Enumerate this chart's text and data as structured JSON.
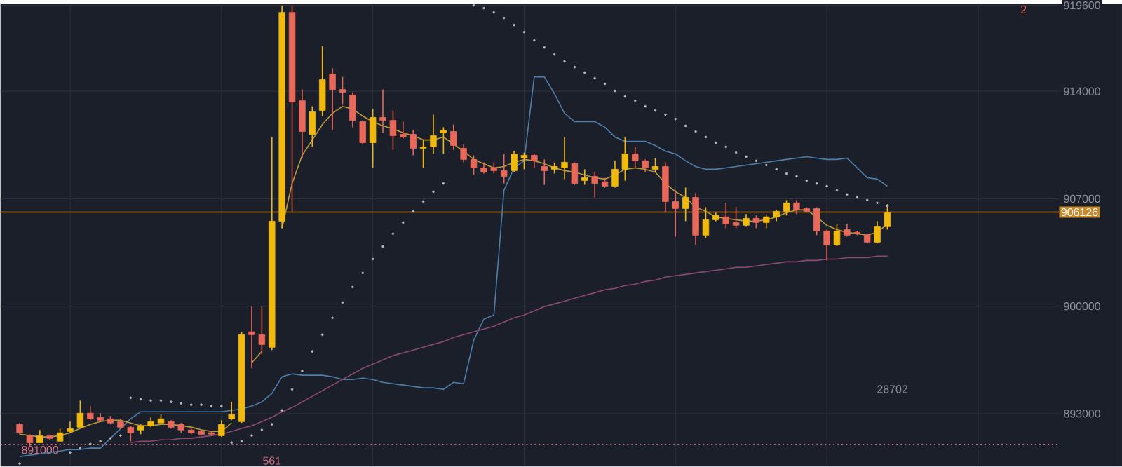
{
  "chart_data": {
    "type": "candlestick",
    "categories": [
      null,
      null,
      null,
      null,
      null,
      null,
      null,
      null,
      null,
      null,
      null,
      null,
      null,
      null,
      null,
      null,
      null,
      null,
      null,
      null,
      null,
      null,
      null,
      null,
      null,
      null,
      null,
      null,
      null,
      null,
      null,
      null,
      null,
      null,
      null,
      null,
      null,
      null,
      null,
      null,
      null,
      null,
      null,
      null,
      null,
      null,
      null,
      null,
      null,
      null,
      null,
      null,
      null,
      null,
      null,
      null,
      null,
      null,
      null,
      null,
      null,
      null,
      null,
      null,
      null,
      null,
      null,
      null,
      null,
      null,
      null,
      null,
      null,
      null,
      null,
      null,
      null,
      null,
      null,
      null,
      null,
      null,
      null,
      null,
      null,
      null,
      null
    ],
    "ohlc": [
      [
        892300,
        892390,
        891650,
        891750
      ],
      [
        891560,
        891650,
        890840,
        891100
      ],
      [
        891100,
        891930,
        891100,
        891560
      ],
      [
        891560,
        891650,
        891290,
        891380
      ],
      [
        891200,
        892020,
        891200,
        891750
      ],
      [
        891840,
        892480,
        891750,
        892020
      ],
      [
        892110,
        893850,
        892110,
        893030
      ],
      [
        893030,
        893490,
        892570,
        892660
      ],
      [
        892750,
        893030,
        892480,
        892570
      ],
      [
        892660,
        892850,
        892300,
        892390
      ],
      [
        892480,
        892660,
        892020,
        892110
      ],
      [
        892110,
        892200,
        891200,
        891750
      ],
      [
        891930,
        892300,
        891660,
        892200
      ],
      [
        892200,
        892750,
        892110,
        892480
      ],
      [
        892390,
        892940,
        892300,
        892660
      ],
      [
        892480,
        892570,
        892020,
        892110
      ],
      [
        892300,
        892390,
        891750,
        891930
      ],
      [
        891930,
        892020,
        891660,
        891750
      ],
      [
        891840,
        891930,
        891560,
        891650
      ],
      [
        891750,
        891840,
        891560,
        891660
      ],
      [
        891560,
        892570,
        891480,
        892300
      ],
      [
        892660,
        893760,
        892570,
        892940
      ],
      [
        892480,
        898330,
        892390,
        898140
      ],
      [
        898330,
        899970,
        895950,
        898140
      ],
      [
        898140,
        899970,
        896870,
        897500
      ],
      [
        897320,
        911020,
        897140,
        905540
      ],
      [
        905540,
        919600,
        905080,
        919140
      ],
      [
        919140,
        919600,
        906180,
        913300
      ],
      [
        913390,
        914120,
        909650,
        911380
      ],
      [
        911200,
        913030,
        910380,
        912660
      ],
      [
        912750,
        916950,
        912390,
        914760
      ],
      [
        915130,
        915490,
        911470,
        914120
      ],
      [
        914120,
        914940,
        913110,
        913940
      ],
      [
        913760,
        913940,
        911660,
        912110
      ],
      [
        912020,
        912110,
        910560,
        910650
      ],
      [
        910650,
        912850,
        909010,
        912300
      ],
      [
        912300,
        914120,
        911290,
        912110
      ],
      [
        912110,
        912750,
        910190,
        911110
      ],
      [
        911200,
        912020,
        910930,
        911020
      ],
      [
        911200,
        911470,
        909830,
        910290
      ],
      [
        910290,
        910840,
        909010,
        910380
      ],
      [
        910380,
        912480,
        909920,
        911110
      ],
      [
        911290,
        911660,
        909920,
        911470
      ],
      [
        911380,
        911840,
        910190,
        910470
      ],
      [
        910290,
        910560,
        909370,
        909560
      ],
      [
        909560,
        909830,
        908550,
        909010
      ],
      [
        909010,
        909370,
        908640,
        908740
      ],
      [
        909010,
        909370,
        908640,
        908830
      ],
      [
        908830,
        909920,
        908000,
        908460
      ],
      [
        908830,
        910100,
        908730,
        909920
      ],
      [
        909650,
        910010,
        908920,
        909830
      ],
      [
        909830,
        909920,
        909010,
        909470
      ],
      [
        909100,
        909560,
        907910,
        908830
      ],
      [
        908920,
        909370,
        908640,
        909100
      ],
      [
        909010,
        911020,
        908280,
        909380
      ],
      [
        909290,
        909370,
        907910,
        908000
      ],
      [
        908190,
        908920,
        907910,
        908370
      ],
      [
        908460,
        908730,
        907090,
        908000
      ],
      [
        908100,
        908370,
        907730,
        907820
      ],
      [
        907820,
        909470,
        907730,
        908920
      ],
      [
        908920,
        911020,
        908180,
        909920
      ],
      [
        909920,
        910380,
        909010,
        909470
      ],
      [
        909470,
        909560,
        908730,
        909010
      ],
      [
        908920,
        909650,
        908730,
        909100
      ],
      [
        909100,
        909370,
        906090,
        906820
      ],
      [
        906820,
        907550,
        904540,
        906360
      ],
      [
        906360,
        907730,
        905540,
        907090
      ],
      [
        907090,
        907370,
        903990,
        904630
      ],
      [
        904630,
        906450,
        904450,
        905630
      ],
      [
        905630,
        906090,
        905540,
        905910
      ],
      [
        905820,
        906730,
        905080,
        905360
      ],
      [
        905450,
        906450,
        905080,
        905270
      ],
      [
        905270,
        906000,
        905170,
        905720
      ],
      [
        905720,
        905910,
        905080,
        905450
      ],
      [
        905450,
        905910,
        905080,
        905820
      ],
      [
        905820,
        906270,
        905540,
        906180
      ],
      [
        906180,
        906910,
        905910,
        906730
      ],
      [
        906730,
        906910,
        906000,
        906270
      ],
      [
        906360,
        906450,
        906090,
        906180
      ],
      [
        906360,
        906450,
        904630,
        904900
      ],
      [
        904900,
        904990,
        902980,
        903990
      ],
      [
        903990,
        905360,
        903900,
        904900
      ],
      [
        904990,
        905360,
        904540,
        904630
      ],
      [
        904810,
        904900,
        904630,
        904720
      ],
      [
        904630,
        904720,
        904080,
        904170
      ],
      [
        904170,
        905540,
        904080,
        905180
      ],
      [
        905180,
        906640,
        904990,
        906090
      ]
    ],
    "colors": [
      "#e8685a",
      "#e8685a",
      "#f0b90b",
      "#e8685a",
      "#f0b90b",
      "#f0b90b",
      "#f0b90b",
      "#e8685a",
      "#e8685a",
      "#e8685a",
      "#e8685a",
      "#e8685a",
      "#f0b90b",
      "#f0b90b",
      "#f0b90b",
      "#e8685a",
      "#e8685a",
      "#e8685a",
      "#e8685a",
      "#e8685a",
      "#f0b90b",
      "#f0b90b",
      "#f0b90b",
      "#e8685a",
      "#e8685a",
      "#f0b90b",
      "#f0b90b",
      "#e8685a",
      "#e8685a",
      "#f0b90b",
      "#f0b90b",
      "#e8685a",
      "#e8685a",
      "#e8685a",
      "#e8685a",
      "#f0b90b",
      "#e8685a",
      "#e8685a",
      "#e8685a",
      "#e8685a",
      "#f0b90b",
      "#f0b90b",
      "#f0b90b",
      "#e8685a",
      "#e8685a",
      "#e8685a",
      "#e8685a",
      "#e8685a",
      "#e8685a",
      "#f0b90b",
      "#f0b90b",
      "#e8685a",
      "#e8685a",
      "#f0b90b",
      "#f0b90b",
      "#e8685a",
      "#f0b90b",
      "#e8685a",
      "#e8685a",
      "#f0b90b",
      "#f0b90b",
      "#e8685a",
      "#e8685a",
      "#f0b90b",
      "#e8685a",
      "#e8685a",
      "#f0b90b",
      "#e8685a",
      "#f0b90b",
      "#f0b90b",
      "#e8685a",
      "#e8685a",
      "#f0b90b",
      "#e8685a",
      "#f0b90b",
      "#f0b90b",
      "#f0b90b",
      "#e8685a",
      "#e8685a",
      "#e8685a",
      "#e8685a",
      "#f0b90b",
      "#e8685a",
      "#e8685a",
      "#e8685a",
      "#f0b90b",
      "#f0b90b"
    ],
    "series": [
      {
        "type": "line",
        "color": "#4f7eab",
        "values": [
          890200,
          890290,
          890380,
          890470,
          890560,
          890660,
          890660,
          890750,
          890750,
          891390,
          892030,
          892670,
          893120,
          893120,
          893120,
          893120,
          893120,
          893120,
          893120,
          893120,
          893120,
          893210,
          893300,
          893490,
          893760,
          894310,
          895400,
          895590,
          895500,
          895500,
          895500,
          895400,
          895220,
          895220,
          895310,
          895220,
          895040,
          894950,
          894860,
          894770,
          894680,
          894680,
          894580,
          895040,
          894950,
          897780,
          899150,
          899420,
          907550,
          909010,
          909470,
          914940,
          914940,
          913850,
          912570,
          912020,
          912020,
          912020,
          911660,
          911020,
          910740,
          910740,
          910740,
          910470,
          910100,
          909920,
          909470,
          909100,
          908920,
          908920,
          909010,
          909100,
          909190,
          909280,
          909370,
          909470,
          909560,
          909650,
          909740,
          909650,
          909560,
          909560,
          909650,
          909010,
          908370,
          908280,
          907820
        ]
      },
      {
        "type": "line",
        "color": "#8c4a72",
        "values": [
          null,
          null,
          null,
          null,
          null,
          null,
          null,
          null,
          null,
          null,
          null,
          891110,
          891200,
          891200,
          891290,
          891290,
          891390,
          891390,
          891480,
          891570,
          891660,
          891840,
          892030,
          892210,
          892480,
          892760,
          893120,
          893400,
          893760,
          894130,
          894490,
          894860,
          895220,
          895590,
          895950,
          896230,
          896500,
          896780,
          896960,
          897140,
          897320,
          897510,
          897690,
          897960,
          898140,
          898330,
          898510,
          898690,
          898970,
          899240,
          899420,
          899700,
          899970,
          900150,
          900330,
          900520,
          900700,
          900880,
          901070,
          901160,
          901340,
          901430,
          901610,
          901700,
          901890,
          901980,
          902070,
          902160,
          902250,
          902340,
          902430,
          902530,
          902530,
          902620,
          902710,
          902800,
          902890,
          902890,
          902980,
          902980,
          903070,
          903070,
          903160,
          903160,
          903160,
          903260,
          903260
        ]
      },
      {
        "type": "line",
        "color": "#b89a3c",
        "values": [
          891660,
          891570,
          891480,
          891480,
          891570,
          891750,
          892030,
          892300,
          892480,
          892570,
          892570,
          892390,
          892210,
          892210,
          892300,
          892300,
          892210,
          892120,
          891940,
          891840,
          891840,
          892390,
          null,
          896320,
          897050,
          null,
          905080,
          908000,
          909830,
          910830,
          911840,
          912570,
          913020,
          912840,
          912390,
          912020,
          911750,
          911570,
          911290,
          911110,
          910830,
          910830,
          911020,
          910560,
          910100,
          909560,
          909280,
          909010,
          909100,
          909370,
          909560,
          909470,
          909280,
          909010,
          908830,
          908730,
          908550,
          908370,
          908280,
          908550,
          908920,
          909010,
          908920,
          908730,
          908000,
          907460,
          907090,
          906450,
          906180,
          905810,
          905720,
          905630,
          905540,
          905540,
          905630,
          905810,
          906090,
          906270,
          906270,
          905810,
          905260,
          904990,
          904810,
          904720,
          904630,
          904810,
          905360
        ]
      },
      {
        "type": "scatter",
        "color": "#b4b8c0",
        "values": [
          889740,
          null,
          null,
          null,
          null,
          890470,
          890750,
          891020,
          891200,
          891390,
          891570,
          894030,
          893940,
          893850,
          893850,
          893760,
          893670,
          893580,
          893580,
          893490,
          893490,
          891110,
          891200,
          891570,
          891940,
          892300,
          893210,
          894580,
          895770,
          897050,
          898140,
          899240,
          900240,
          901250,
          902160,
          903070,
          903890,
          904720,
          905450,
          906180,
          906820,
          907460,
          908000,
          null,
          null,
          919600,
          919420,
          919140,
          918780,
          918320,
          917860,
          917320,
          916860,
          916400,
          915950,
          915580,
          915220,
          914850,
          914490,
          914030,
          913660,
          913390,
          913020,
          912750,
          912480,
          912200,
          911750,
          911380,
          911020,
          910650,
          910380,
          910010,
          909740,
          909470,
          909190,
          908920,
          908640,
          908460,
          908180,
          908000,
          907820,
          907550,
          907280,
          907090,
          906910,
          906730,
          906540
        ]
      }
    ],
    "ylim": [
      889560,
      919700
    ],
    "yticks": [
      893000,
      900000,
      907000,
      914000,
      919600
    ],
    "grid": true,
    "ref_lines": [
      {
        "axis": "y",
        "value": 906126,
        "label": "906126",
        "color": "#c98a2e"
      },
      {
        "axis": "y",
        "value": 891000,
        "label": "891000",
        "color": "#d9708a",
        "line_style": "dotted"
      }
    ],
    "annotations": [
      "561",
      "28702",
      "2"
    ]
  }
}
